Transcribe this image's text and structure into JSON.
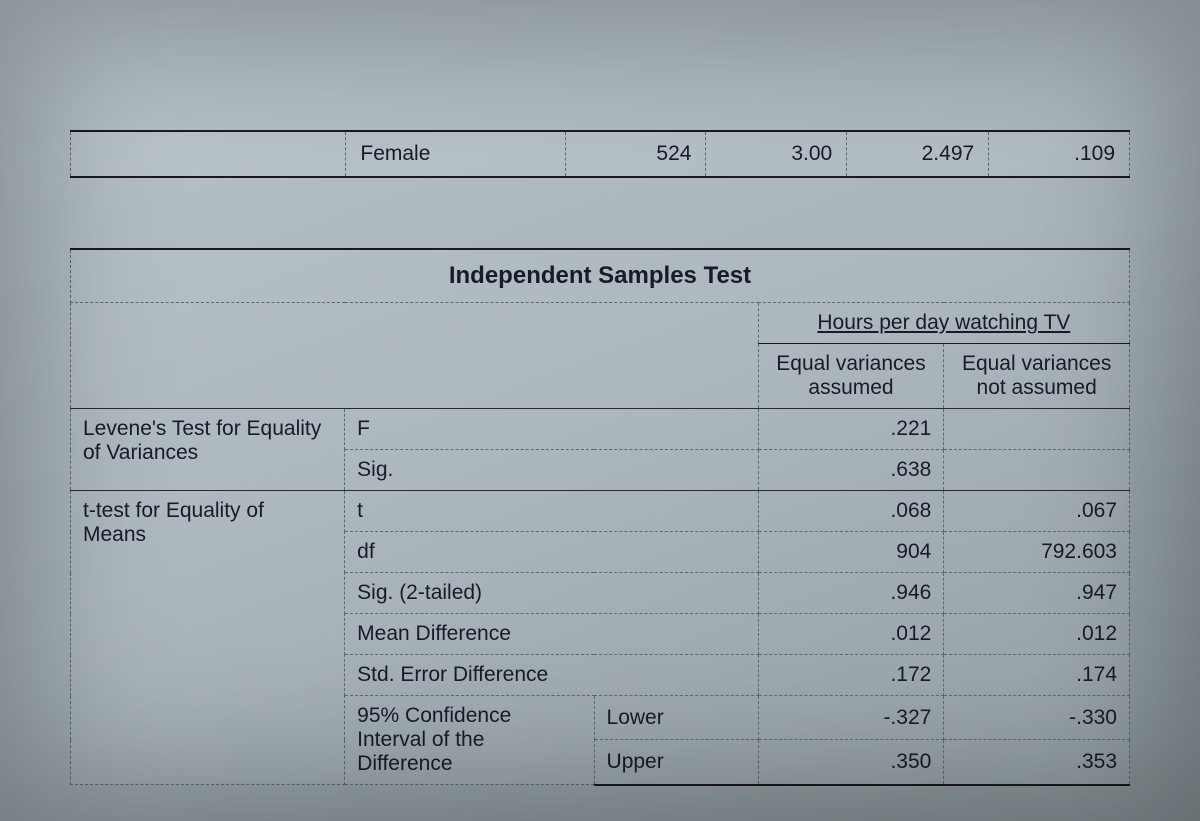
{
  "summary_row": {
    "group_label": "Female",
    "n": "524",
    "mean": "3.00",
    "std_dev": "2.497",
    "se_mean": ".109"
  },
  "main_table": {
    "title": "Independent Samples Test",
    "dep_var_header": "Hours per day watching TV",
    "col_assumed": "Equal variances assumed",
    "col_not_assumed": "Equal variances not assumed",
    "section_levene": "Levene's Test for Equality of Variances",
    "section_ttest": "t-test for Equality of Means",
    "rows": {
      "F": {
        "label": "F",
        "assumed": ".221",
        "not_assumed": ""
      },
      "Sig": {
        "label": "Sig.",
        "assumed": ".638",
        "not_assumed": ""
      },
      "t": {
        "label": "t",
        "assumed": ".068",
        "not_assumed": ".067"
      },
      "df": {
        "label": "df",
        "assumed": "904",
        "not_assumed": "792.603"
      },
      "sig2": {
        "label": "Sig. (2-tailed)",
        "assumed": ".946",
        "not_assumed": ".947"
      },
      "meandiff": {
        "label": "Mean Difference",
        "assumed": ".012",
        "not_assumed": ".012"
      },
      "sediff": {
        "label": "Std. Error Difference",
        "assumed": ".172",
        "not_assumed": ".174"
      },
      "ci_label": "95% Confidence Interval of the Difference",
      "ci_lower": {
        "label": "Lower",
        "assumed": "-.327",
        "not_assumed": "-.330"
      },
      "ci_upper": {
        "label": "Upper",
        "assumed": ".350",
        "not_assumed": ".353"
      }
    }
  }
}
